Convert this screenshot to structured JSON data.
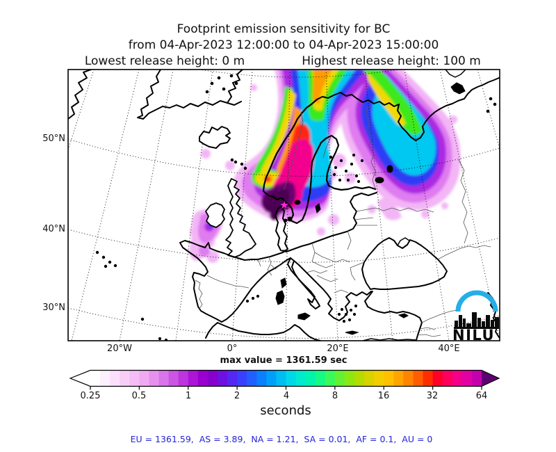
{
  "title": {
    "line1": "Footprint emission sensitivity for BC",
    "line2": "from 04-Apr-2023 12:00:00 to 04-Apr-2023 15:00:00",
    "lowest": "Lowest release height: 0 m",
    "highest": "Highest release height: 100 m"
  },
  "map": {
    "lat_labels": [
      "50°N",
      "40°N",
      "30°N"
    ],
    "lon_labels": [
      "20°W",
      "0°",
      "20°E",
      "40°E"
    ],
    "logo_text": "NILU",
    "logo_arc_color": "#27aee8",
    "release_marker": "star"
  },
  "colorbar": {
    "max_value_label": "max value = 1361.59 sec",
    "units_label": "seconds",
    "ticks": [
      "0.25",
      "0.5",
      "1",
      "2",
      "4",
      "8",
      "16",
      "32",
      "64"
    ],
    "tip_left": "#ffffff",
    "tip_right": "#5e0072",
    "segments": [
      "#ffffff",
      "#fdeffd",
      "#fbdffb",
      "#f8cef8",
      "#f5bdf6",
      "#f0aaf2",
      "#e691ee",
      "#da74e9",
      "#cc55e3",
      "#bd35dd",
      "#ab16d6",
      "#9a00cf",
      "#8800cc",
      "#6f10e2",
      "#5527f2",
      "#3a40ff",
      "#2060ff",
      "#0a80ff",
      "#00a0fa",
      "#00bdf2",
      "#00d8e8",
      "#00ead0",
      "#00f4ae",
      "#14fa85",
      "#3afa5a",
      "#62f232",
      "#8ce812",
      "#b4dc00",
      "#d8d200",
      "#f2ce00",
      "#ffc000",
      "#ffa400",
      "#ff8400",
      "#ff5e00",
      "#ff2e00",
      "#ff0028",
      "#fc005c",
      "#f40088",
      "#e200a2",
      "#c400ad"
    ]
  },
  "footer": {
    "regions_line": "EU = 1361.59,  AS = 3.89,  NA = 1.21,  SA = 0.01,  AF = 0.1,  AU = 0"
  },
  "chart_data": {
    "type": "heatmap",
    "title": "Footprint emission sensitivity for BC",
    "subtitle": "from 04-Apr-2023 12:00:00 to 04-Apr-2023 15:00:00",
    "release_heights_m": {
      "lowest": 0,
      "highest": 100
    },
    "units": "seconds",
    "scale": "log2",
    "colorbar_ticks": [
      0.25,
      0.5,
      1,
      2,
      4,
      8,
      16,
      32,
      64
    ],
    "max_value_sec": 1361.59,
    "region_totals": {
      "EU": 1361.59,
      "AS": 3.89,
      "NA": 1.21,
      "SA": 0.01,
      "AF": 0.1,
      "AU": 0
    },
    "map_axes": {
      "lat_ticks_deg_n": [
        50,
        40,
        30
      ],
      "lon_ticks": [
        "20W",
        "0",
        "20E",
        "40E"
      ],
      "grid": "dotted graticule"
    },
    "hotspot_description": "Maximum sensitivity plume centered over southern Norway / Denmark, extending north over the Norwegian Sea and east over NW Russia; release point star near Denmark"
  }
}
